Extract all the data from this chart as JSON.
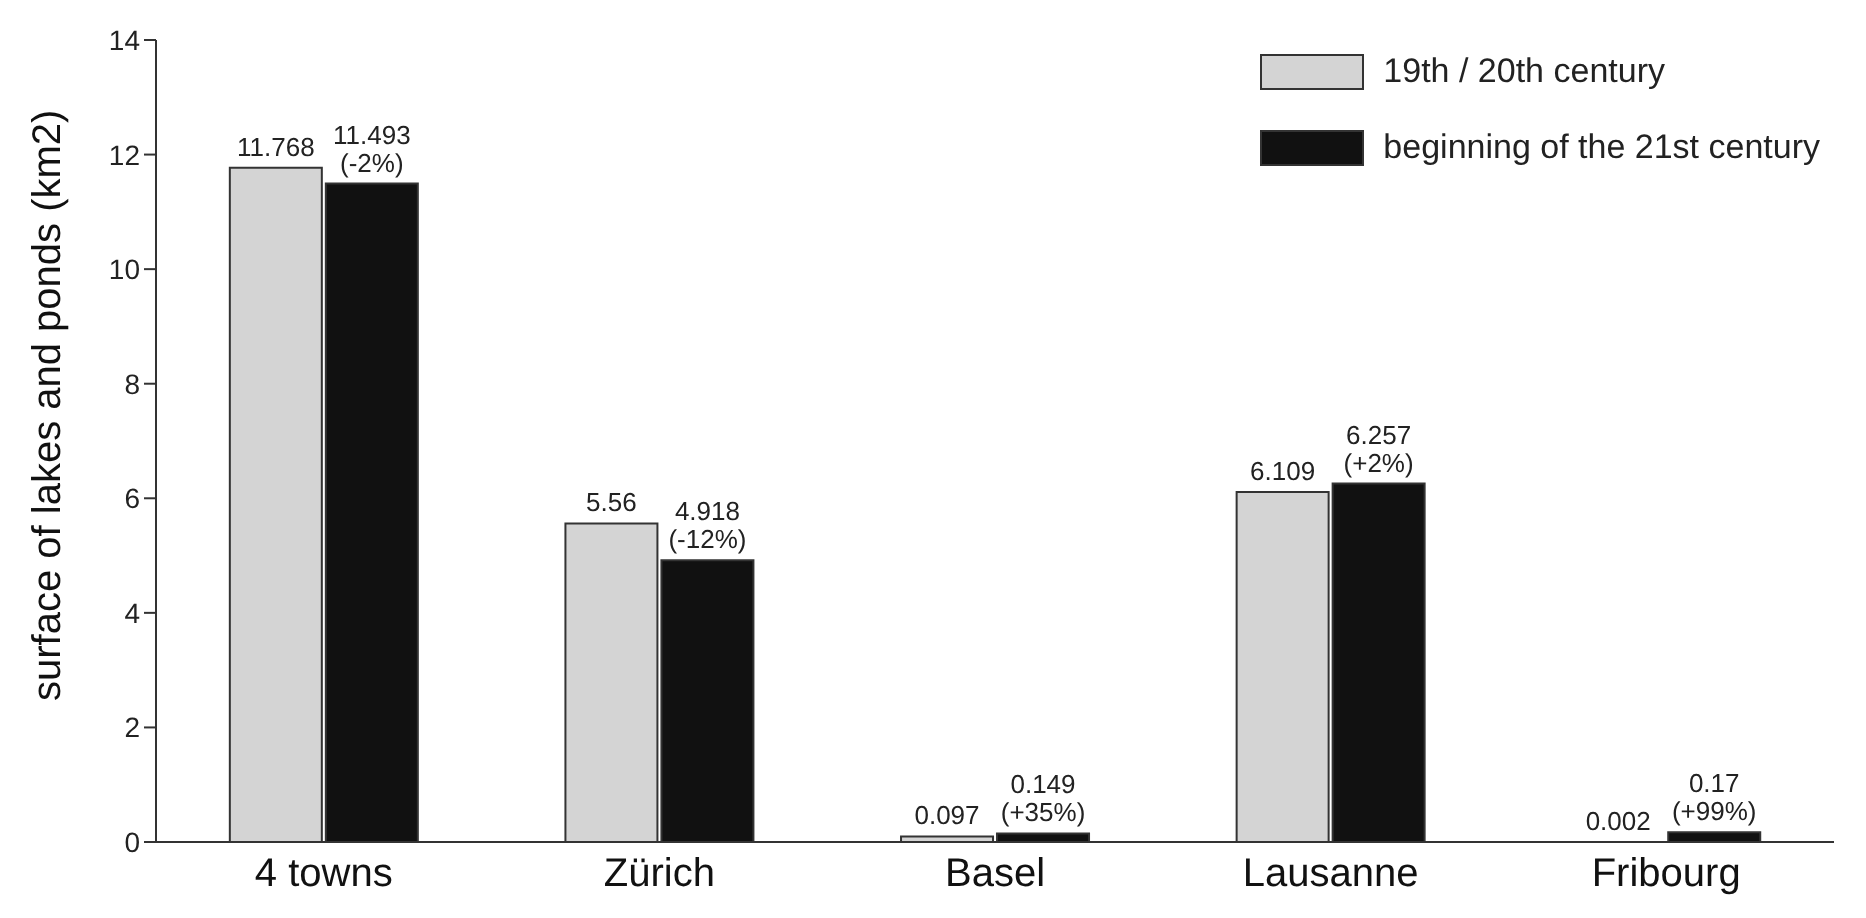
{
  "chart_data": {
    "type": "bar",
    "ylabel": "surface of lakes and ponds (km2)",
    "categories": [
      "4 towns",
      "Zürich",
      "Basel",
      "Lausanne",
      "Fribourg"
    ],
    "series": [
      {
        "name": "19th / 20th century",
        "color": "#d4d4d4",
        "values": [
          11.768,
          5.56,
          0.097,
          6.109,
          0.002
        ],
        "value_labels": [
          "11.768",
          "5.56",
          "0.097",
          "6.109",
          "0.002"
        ]
      },
      {
        "name": "beginning of the 21st century",
        "color": "#111111",
        "values": [
          11.493,
          4.918,
          0.149,
          6.257,
          0.17
        ],
        "value_labels": [
          "11.493\n(-2%)",
          "4.918\n(-12%)",
          "0.149\n(+35%)",
          "6.257\n(+2%)",
          "0.17\n(+99%)"
        ]
      }
    ],
    "ylim": [
      0,
      14
    ],
    "yticks": [
      0,
      2,
      4,
      6,
      8,
      10,
      12,
      14
    ],
    "grid": false,
    "legend": "top right"
  }
}
